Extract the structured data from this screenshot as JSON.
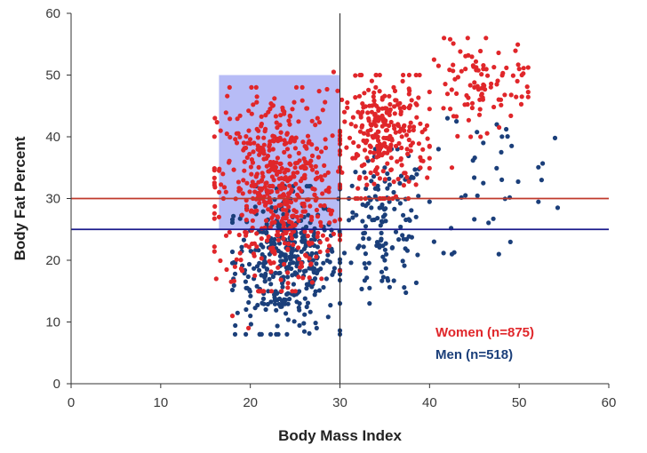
{
  "chart_data": {
    "type": "scatter",
    "title": "",
    "xlabel": "Body Mass Index",
    "ylabel": "Body Fat Percent",
    "xlim": [
      0,
      60
    ],
    "ylim": [
      0,
      60
    ],
    "x_ticks": [
      0,
      10,
      20,
      30,
      40,
      50,
      60
    ],
    "y_ticks": [
      0,
      10,
      20,
      30,
      40,
      50,
      60
    ],
    "grid": false,
    "legend_placement": "bottom-right",
    "colors": {
      "women": "#e0262a",
      "men": "#1b3f7a",
      "women_threshold_line": "#c0392b",
      "men_threshold_line": "#1a1a8c",
      "highlight_region": "#aab0f5",
      "bmi_30_line": "#222222"
    },
    "reference_lines": [
      {
        "orientation": "vertical",
        "x": 30
      },
      {
        "orientation": "horizontal",
        "y": 30,
        "series": "Women"
      },
      {
        "orientation": "horizontal",
        "y": 25,
        "series": "Men"
      }
    ],
    "highlight_region": {
      "x": [
        16.5,
        30
      ],
      "y": [
        25,
        50
      ]
    },
    "series": [
      {
        "name": "Women (n=875)",
        "key": "women",
        "point_count": 875,
        "cluster_summary": [
          {
            "x_range": [
              16,
              30
            ],
            "y_range": [
              15,
              48
            ],
            "share": 0.6
          },
          {
            "x_range": [
              30,
              40
            ],
            "y_range": [
              30,
              50
            ],
            "share": 0.3
          },
          {
            "x_range": [
              40,
              51
            ],
            "y_range": [
              40,
              56
            ],
            "share": 0.1
          }
        ],
        "sample_points": [
          [
            42.3,
            55.8
          ],
          [
            40.5,
            52.5
          ],
          [
            41.0,
            51.5
          ],
          [
            44.0,
            51.0
          ],
          [
            46.0,
            51.0
          ],
          [
            50.0,
            51.0
          ],
          [
            50.3,
            50.0
          ],
          [
            49.8,
            49.0
          ],
          [
            47.5,
            48.5
          ],
          [
            45.0,
            48.0
          ],
          [
            43.0,
            47.0
          ],
          [
            38.5,
            50.0
          ],
          [
            37.0,
            49.0
          ],
          [
            36.0,
            48.0
          ],
          [
            34.0,
            48.0
          ],
          [
            42.5,
            35.0
          ],
          [
            37.5,
            38.0
          ],
          [
            34.5,
            30.0
          ],
          [
            32.0,
            37.0
          ],
          [
            30.5,
            44.0
          ],
          [
            29.3,
            50.5
          ],
          [
            22.0,
            44.0
          ],
          [
            18.5,
            39.0
          ],
          [
            17.0,
            30.0
          ],
          [
            16.5,
            27.0
          ],
          [
            16.2,
            17.0
          ],
          [
            18.0,
            11.0
          ],
          [
            19.8,
            9.0
          ],
          [
            20.5,
            17.5
          ],
          [
            21.0,
            30.0
          ],
          [
            23.0,
            41.5
          ],
          [
            25.0,
            35.0
          ],
          [
            26.5,
            39.0
          ],
          [
            28.0,
            33.0
          ],
          [
            29.0,
            27.5
          ],
          [
            27.5,
            43.0
          ],
          [
            24.0,
            25.0
          ],
          [
            22.5,
            22.0
          ],
          [
            19.5,
            24.0
          ],
          [
            50.3,
            46.5
          ]
        ]
      },
      {
        "name": "Men (n=518)",
        "key": "men",
        "point_count": 518,
        "cluster_summary": [
          {
            "x_range": [
              18,
              30
            ],
            "y_range": [
              8,
              32
            ],
            "share": 0.7
          },
          {
            "x_range": [
              30,
              40
            ],
            "y_range": [
              13,
              38
            ],
            "share": 0.25
          },
          {
            "x_range": [
              40,
              55
            ],
            "y_range": [
              21,
              44
            ],
            "share": 0.05
          }
        ],
        "sample_points": [
          [
            18.3,
            8.0
          ],
          [
            19.5,
            8.0
          ],
          [
            27.4,
            9.0
          ],
          [
            20.0,
            11.0
          ],
          [
            23.5,
            12.5
          ],
          [
            33.3,
            13.0
          ],
          [
            33.3,
            15.5
          ],
          [
            22.0,
            15.0
          ],
          [
            25.0,
            18.0
          ],
          [
            27.0,
            20.0
          ],
          [
            35.0,
            20.0
          ],
          [
            42.5,
            21.0
          ],
          [
            40.5,
            23.0
          ],
          [
            29.0,
            24.0
          ],
          [
            31.0,
            26.5
          ],
          [
            38.5,
            27.0
          ],
          [
            33.5,
            28.5
          ],
          [
            44.0,
            30.5
          ],
          [
            46.0,
            32.5
          ],
          [
            52.5,
            33.0
          ],
          [
            35.0,
            35.0
          ],
          [
            38.0,
            33.5
          ],
          [
            41.0,
            38.0
          ],
          [
            43.0,
            42.5
          ],
          [
            47.5,
            42.0
          ],
          [
            48.0,
            37.5
          ],
          [
            54.0,
            39.8
          ],
          [
            54.3,
            28.5
          ],
          [
            46.0,
            39.0
          ],
          [
            42.0,
            43.0
          ],
          [
            31.0,
            30.0
          ],
          [
            26.0,
            27.0
          ],
          [
            24.0,
            22.0
          ],
          [
            21.5,
            19.0
          ],
          [
            30.0,
            32.0
          ],
          [
            32.0,
            22.0
          ],
          [
            36.0,
            31.0
          ],
          [
            28.5,
            17.0
          ],
          [
            23.0,
            24.0
          ],
          [
            25.5,
            13.0
          ]
        ]
      }
    ]
  }
}
